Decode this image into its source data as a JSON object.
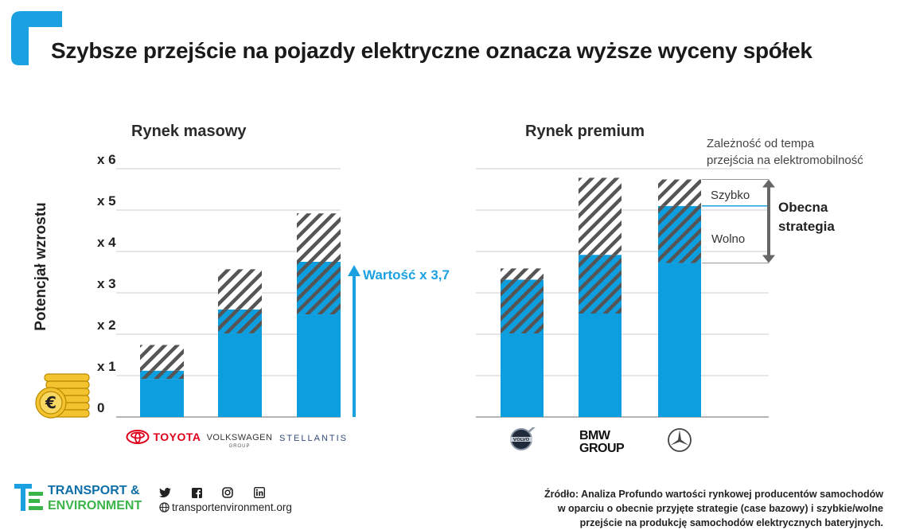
{
  "title": "Szybsze przejście na pojazdy elektryczne oznacza wyższe wyceny spółek",
  "colors": {
    "base": "#0d9ee0",
    "hatch": "#555555",
    "accent": "#1ba1e2",
    "brand": "#0d6ea8",
    "grid": "#cccccc"
  },
  "chart_data": {
    "type": "bar",
    "stacked": true,
    "ylabel": "Potencjał wzrostu",
    "ylim": [
      0,
      6
    ],
    "yticks": [
      "0",
      "x 1",
      "x 2",
      "x 3",
      "x 4",
      "x 5",
      "x 6"
    ],
    "grid": true,
    "legend": "none",
    "panels": [
      {
        "title": "Rynek masowy",
        "categories": [
          "TOYOTA",
          "VOLKSWAGEN GROUP",
          "STELLANTIS"
        ],
        "series": [
          {
            "name": "Obecna strategia",
            "values": [
              0.92,
              2.02,
              2.48
            ]
          },
          {
            "name": "Wolno",
            "values": [
              0.2,
              0.58,
              1.27
            ]
          },
          {
            "name": "Szybko",
            "values": [
              0.62,
              0.97,
              1.17
            ]
          }
        ]
      },
      {
        "title": "Rynek premium",
        "categories": [
          "VOLVO",
          "BMW GROUP",
          "MERCEDES"
        ],
        "series": [
          {
            "name": "Obecna strategia",
            "values": [
              2.02,
              2.5,
              3.72
            ]
          },
          {
            "name": "Wolno",
            "values": [
              1.3,
              1.42,
              1.38
            ]
          },
          {
            "name": "Szybko",
            "values": [
              0.27,
              1.86,
              0.64
            ]
          }
        ]
      }
    ],
    "annotations": {
      "arrow_label": "Wartość x 3,7",
      "note_line1": "Zależność od tempa",
      "note_line2": "przejścia na elektromobilność",
      "fast": "Szybko",
      "slow": "Wolno",
      "strategy_line1": "Obecna",
      "strategy_line2": "strategia"
    }
  },
  "logos": {
    "toyota": "TOYOTA",
    "vw_line1": "VOLKSWAGEN",
    "vw_line2": "GROUP",
    "stellantis": "STELLANTIS",
    "volvo": "VOLVO",
    "bmw_line1": "BMW",
    "bmw_line2": "GROUP"
  },
  "footer": {
    "org_line1": "TRANSPORT &",
    "org_line2": "ENVIRONMENT",
    "url": "transportenvironment.org",
    "social_icons": [
      "twitter-icon",
      "facebook-icon",
      "instagram-icon",
      "linkedin-icon"
    ],
    "source": "Źródło: Analiza Profundo wartości rynkowej producentów samochodów w oparciu o obecnie przyjęte strategie (case bazowy) i szybkie/wolne przejście na produkcję samochodów elektrycznych bateryjnych."
  }
}
